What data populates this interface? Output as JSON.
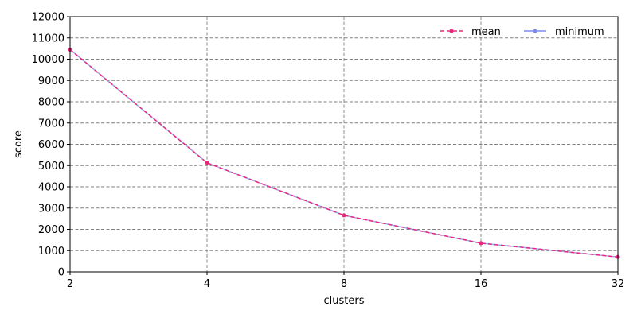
{
  "chart_data": {
    "type": "line",
    "x_scale": "log2",
    "x": [
      2,
      4,
      8,
      16,
      32
    ],
    "x_tick_labels": [
      "2",
      "4",
      "8",
      "16",
      "32"
    ],
    "xlim": [
      2,
      32
    ],
    "ylim": [
      0,
      12000
    ],
    "y_ticks": [
      0,
      1000,
      2000,
      3000,
      4000,
      5000,
      6000,
      7000,
      8000,
      9000,
      10000,
      11000,
      12000
    ],
    "xlabel": "clusters",
    "ylabel": "score",
    "grid": true,
    "legend_position": "top-right",
    "series": [
      {
        "name": "mean",
        "values": [
          10450,
          5130,
          2660,
          1350,
          700
        ],
        "color": "#e8287a",
        "line_style": "dashed",
        "marker": "circle"
      },
      {
        "name": "minimum",
        "values": [
          10450,
          5130,
          2660,
          1350,
          700
        ],
        "color": "#7b8cf0",
        "line_style": "solid",
        "marker": "circle"
      }
    ]
  }
}
